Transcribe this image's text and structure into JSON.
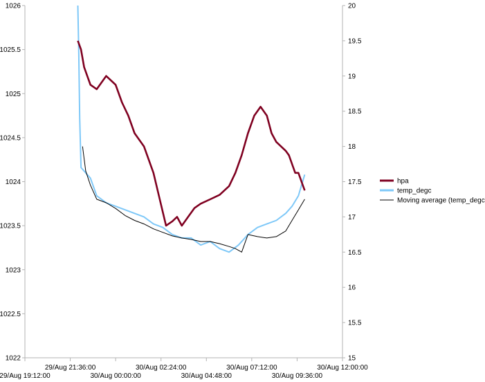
{
  "chart_data": {
    "type": "line",
    "title": "",
    "xlabel": "",
    "ylabel": "",
    "y2label": "",
    "x_axis": {
      "range": [
        "29/Aug 19:12:00",
        "30/Aug 12:00:00"
      ],
      "ticks_upper": [
        "29/Aug 21:36:00",
        "30/Aug 02:24:00",
        "30/Aug 07:12:00",
        "30/Aug 12:00:00"
      ],
      "ticks_lower": [
        "29/Aug 19:12:00",
        "30/Aug 00:00:00",
        "30/Aug 04:48:00",
        "30/Aug 09:36:00"
      ]
    },
    "y_left": {
      "range": [
        1022,
        1026
      ],
      "ticks": [
        "1026",
        "1025.5",
        "1025",
        "1024.5",
        "1024",
        "1023.5",
        "1023",
        "1022.5",
        "1022"
      ]
    },
    "y_right": {
      "range": [
        15,
        20
      ],
      "ticks": [
        "20",
        "19.5",
        "19",
        "18.5",
        "18",
        "17.5",
        "17",
        "16.5",
        "16",
        "15.5",
        "15"
      ]
    },
    "grid": false,
    "legend_position": "right",
    "series": [
      {
        "name": "hpa",
        "axis": "left",
        "color": "#7f0020",
        "x": [
          "29/Aug 22:00",
          "29/Aug 22:10",
          "29/Aug 22:20",
          "29/Aug 22:40",
          "29/Aug 23:00",
          "29/Aug 23:30",
          "30/Aug 00:00",
          "30/Aug 00:20",
          "30/Aug 00:40",
          "30/Aug 01:00",
          "30/Aug 01:30",
          "30/Aug 02:00",
          "30/Aug 02:20",
          "30/Aug 02:40",
          "30/Aug 03:00",
          "30/Aug 03:15",
          "30/Aug 03:30",
          "30/Aug 03:50",
          "30/Aug 04:10",
          "30/Aug 04:30",
          "30/Aug 05:00",
          "30/Aug 05:30",
          "30/Aug 06:00",
          "30/Aug 06:20",
          "30/Aug 06:40",
          "30/Aug 07:00",
          "30/Aug 07:20",
          "30/Aug 07:40",
          "30/Aug 08:00",
          "30/Aug 08:15",
          "30/Aug 08:30",
          "30/Aug 08:45",
          "30/Aug 09:00",
          "30/Aug 09:10",
          "30/Aug 09:20",
          "30/Aug 09:30",
          "30/Aug 09:40",
          "30/Aug 09:50",
          "30/Aug 10:00"
        ],
        "values": [
          1025.6,
          1025.5,
          1025.3,
          1025.1,
          1025.05,
          1025.2,
          1025.1,
          1024.9,
          1024.75,
          1024.55,
          1024.4,
          1024.1,
          1023.8,
          1023.5,
          1023.55,
          1023.6,
          1023.5,
          1023.6,
          1023.7,
          1023.75,
          1023.8,
          1023.85,
          1023.95,
          1024.1,
          1024.3,
          1024.55,
          1024.75,
          1024.85,
          1024.75,
          1024.55,
          1024.45,
          1024.4,
          1024.35,
          1024.3,
          1024.2,
          1024.1,
          1024.1,
          1024.0,
          1023.9
        ]
      },
      {
        "name": "temp_degc",
        "axis": "right",
        "color": "#7ec8f8",
        "x": [
          "29/Aug 22:00",
          "29/Aug 22:03",
          "29/Aug 22:06",
          "29/Aug 22:10",
          "29/Aug 22:20",
          "29/Aug 22:40",
          "29/Aug 23:00",
          "29/Aug 23:30",
          "30/Aug 00:00",
          "30/Aug 00:30",
          "30/Aug 01:00",
          "30/Aug 01:30",
          "30/Aug 02:00",
          "30/Aug 02:30",
          "30/Aug 03:00",
          "30/Aug 03:30",
          "30/Aug 04:00",
          "30/Aug 04:30",
          "30/Aug 05:00",
          "30/Aug 05:30",
          "30/Aug 06:00",
          "30/Aug 06:30",
          "30/Aug 07:00",
          "30/Aug 07:30",
          "30/Aug 08:00",
          "30/Aug 08:30",
          "30/Aug 09:00",
          "30/Aug 09:20",
          "30/Aug 09:40",
          "30/Aug 10:00"
        ],
        "values": [
          20.0,
          19.3,
          18.4,
          17.7,
          17.65,
          17.55,
          17.3,
          17.2,
          17.15,
          17.1,
          17.05,
          17.0,
          16.9,
          16.85,
          16.75,
          16.7,
          16.7,
          16.6,
          16.65,
          16.55,
          16.5,
          16.6,
          16.75,
          16.85,
          16.9,
          16.95,
          17.05,
          17.15,
          17.3,
          17.6
        ]
      },
      {
        "name": "Moving average (temp_degc)",
        "axis": "right",
        "color": "#000000",
        "x": [
          "29/Aug 22:15",
          "29/Aug 22:25",
          "29/Aug 22:40",
          "29/Aug 23:00",
          "29/Aug 23:30",
          "30/Aug 00:00",
          "30/Aug 00:30",
          "30/Aug 01:00",
          "30/Aug 01:30",
          "30/Aug 02:00",
          "30/Aug 02:30",
          "30/Aug 03:00",
          "30/Aug 03:30",
          "30/Aug 04:00",
          "30/Aug 04:30",
          "30/Aug 05:00",
          "30/Aug 05:30",
          "30/Aug 06:00",
          "30/Aug 06:20",
          "30/Aug 06:40",
          "30/Aug 07:00",
          "30/Aug 07:30",
          "30/Aug 08:00",
          "30/Aug 08:30",
          "30/Aug 09:00",
          "30/Aug 09:20",
          "30/Aug 09:40",
          "30/Aug 10:00"
        ],
        "values": [
          18.0,
          17.65,
          17.45,
          17.25,
          17.2,
          17.12,
          17.02,
          16.95,
          16.9,
          16.83,
          16.78,
          16.73,
          16.7,
          16.68,
          16.65,
          16.65,
          16.62,
          16.58,
          16.55,
          16.5,
          16.75,
          16.72,
          16.7,
          16.72,
          16.8,
          16.95,
          17.1,
          17.25
        ]
      }
    ]
  }
}
